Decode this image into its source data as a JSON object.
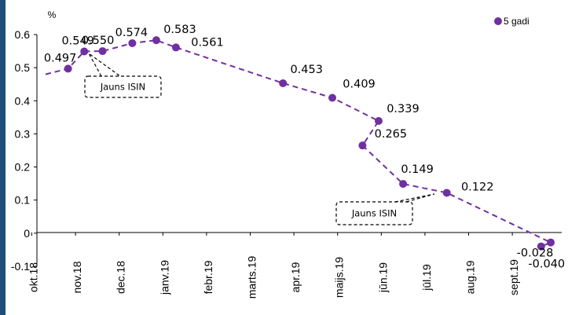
{
  "chart_data": {
    "type": "line",
    "y_unit": "%",
    "ylim": [
      -0.1,
      0.6
    ],
    "y_ticks": [
      "-0.1",
      "0",
      "0.1",
      "0.2",
      "0.3",
      "0.4",
      "0.5",
      "0.6"
    ],
    "x_ticks": [
      "okt.18",
      "nov.18",
      "dec.18",
      "janv.19",
      "febr.19",
      "marts.19",
      "apr.19",
      "maijs.19",
      "jūn.19",
      "jūl.19",
      "aug.19",
      "sept.19"
    ],
    "series": [
      {
        "name": "5 gadi",
        "color": "#7030a0",
        "line_style": "dashed",
        "x": [
          "okt.18",
          "okt.18",
          "nov.18",
          "nov.18",
          "dec.18",
          "dec.18",
          "janv.19",
          "febr.19",
          "marts.19",
          "apr.19",
          "maijs.19",
          "maijs.19",
          "jūn.19",
          "jūl.19",
          "sept.19",
          "sept.19"
        ],
        "values": [
          0.48,
          0.497,
          0.549,
          0.55,
          0.574,
          0.583,
          0.561,
          null,
          0.453,
          0.409,
          0.339,
          0.265,
          0.149,
          0.122,
          -0.028,
          -0.04
        ],
        "markers": [
          false,
          true,
          true,
          true,
          true,
          true,
          true,
          false,
          true,
          true,
          true,
          true,
          true,
          true,
          true,
          true
        ],
        "data_labels": [
          "",
          "0.497",
          "0.549",
          "0.550",
          "0.574",
          "0.583",
          "0.561",
          "",
          "0.453",
          "0.409",
          "0.339",
          "0.265",
          "0.149",
          "0.122",
          "-0.028",
          "-0.040"
        ]
      }
    ],
    "legend": {
      "position": "top-right",
      "entries": [
        "5 gadi"
      ]
    },
    "annotations": [
      {
        "text": "Jauns ISIN",
        "points_to": "0.549"
      },
      {
        "text": "Jauns ISIN",
        "points_to": "0.122"
      }
    ],
    "grid": false
  }
}
